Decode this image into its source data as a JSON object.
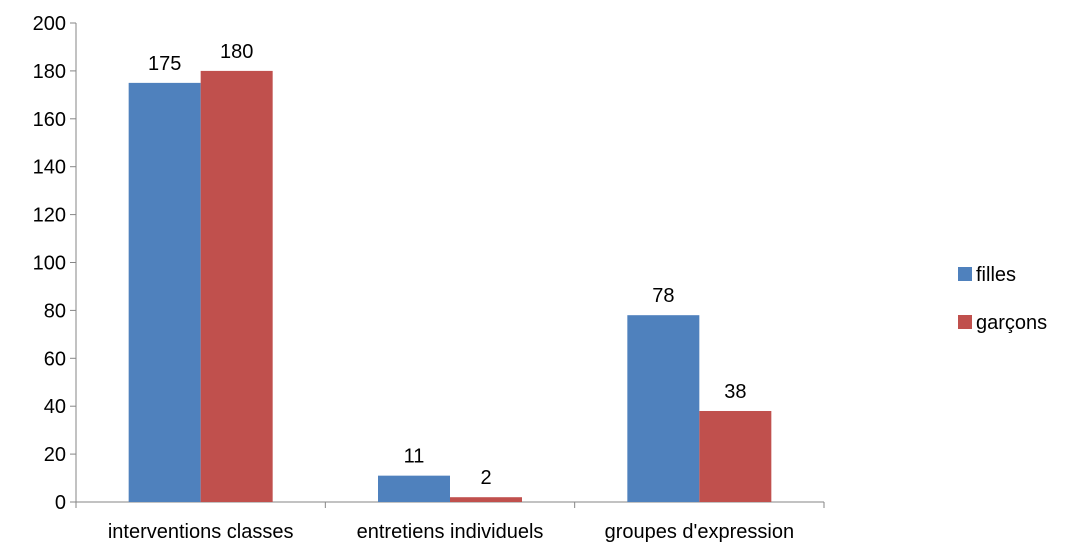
{
  "chart_data": {
    "type": "bar",
    "title": "",
    "xlabel": "",
    "ylabel": "",
    "categories": [
      "interventions classes",
      "entretiens individuels",
      "groupes d'expression"
    ],
    "series": [
      {
        "name": "filles",
        "values": [
          175,
          11,
          78
        ],
        "color": "#4F81BD"
      },
      {
        "name": "garçons",
        "values": [
          180,
          2,
          38
        ],
        "color": "#C0504D"
      }
    ],
    "ylim": [
      0,
      200
    ],
    "yticks": [
      0,
      20,
      40,
      60,
      80,
      100,
      120,
      140,
      160,
      180,
      200
    ],
    "ytick_labels": [
      "0",
      "20",
      "40",
      "60",
      "80",
      "100",
      "120",
      "140",
      "160",
      "180",
      "200"
    ],
    "grid": false,
    "legend": "right",
    "data_labels": true
  }
}
